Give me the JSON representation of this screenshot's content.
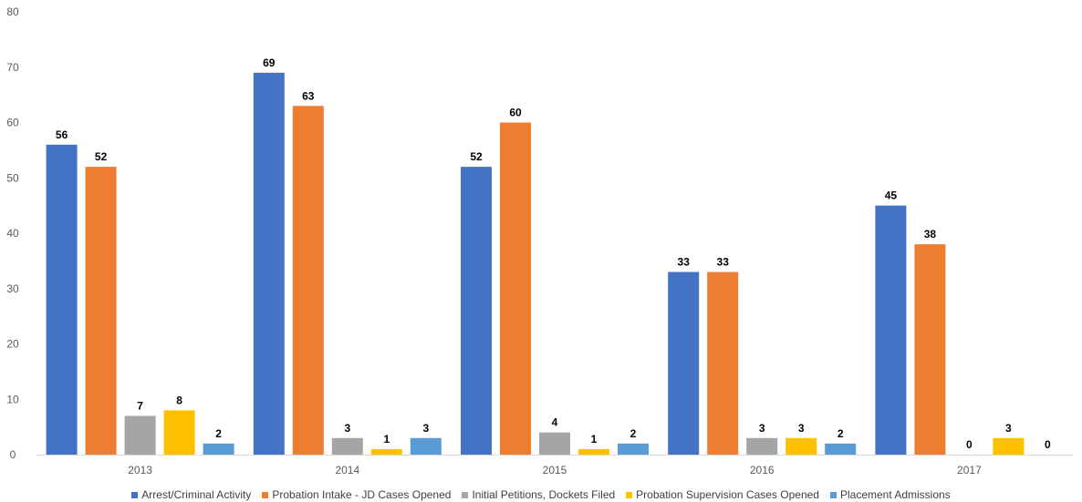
{
  "chart_data": {
    "type": "bar",
    "categories": [
      "2013",
      "2014",
      "2015",
      "2016",
      "2017"
    ],
    "series": [
      {
        "name": "Arrest/Criminal Activity",
        "color": "#4472C4",
        "values": [
          56,
          69,
          52,
          33,
          45
        ]
      },
      {
        "name": "Probation Intake - JD Cases Opened",
        "color": "#ED7D31",
        "values": [
          52,
          63,
          60,
          33,
          38
        ]
      },
      {
        "name": "Initial Petitions, Dockets Filed",
        "color": "#A5A5A5",
        "values": [
          7,
          3,
          4,
          3,
          0
        ]
      },
      {
        "name": "Probation Supervision Cases Opened",
        "color": "#FFC000",
        "values": [
          8,
          1,
          1,
          3,
          3
        ]
      },
      {
        "name": "Placement Admissions",
        "color": "#5B9BD5",
        "values": [
          2,
          3,
          2,
          2,
          0
        ]
      }
    ],
    "ylim": [
      0,
      80
    ],
    "yticks": [
      0,
      10,
      20,
      30,
      40,
      50,
      60,
      70,
      80
    ],
    "title": "",
    "xlabel": "",
    "ylabel": "",
    "grid": false,
    "legend_position": "bottom",
    "data_labels": true
  }
}
